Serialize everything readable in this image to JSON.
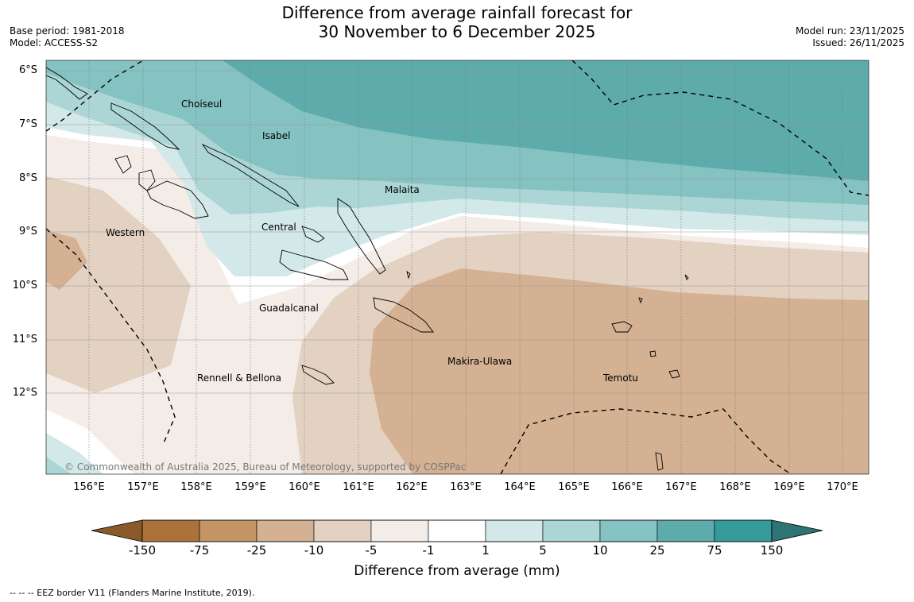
{
  "header": {
    "title_line1": "Difference from average rainfall forecast for",
    "title_line2": "30 November to 6 December 2025",
    "base_period": "Base period: 1981-2018",
    "model": "Model: ACCESS-S2",
    "model_run": "Model run: 23/11/2025",
    "issued": "Issued: 26/11/2025"
  },
  "map": {
    "lat_labels": [
      "6°S",
      "7°S",
      "8°S",
      "9°S",
      "10°S",
      "11°S",
      "12°S"
    ],
    "lon_labels": [
      "156°E",
      "157°E",
      "158°E",
      "159°E",
      "160°E",
      "161°E",
      "162°E",
      "163°E",
      "164°E",
      "165°E",
      "166°E",
      "167°E",
      "168°E",
      "169°E",
      "170°E"
    ],
    "regions": [
      "Choiseul",
      "Isabel",
      "Malaita",
      "Western",
      "Central",
      "Guadalcanal",
      "Makira-Ulawa",
      "Rennell & Bellona",
      "Temotu"
    ],
    "copyright": "© Commonwealth of Australia 2025, Bureau of Meteorology, supported by COSPPac"
  },
  "colorbar": {
    "title": "Difference from average (mm)",
    "ticks": [
      "-150",
      "-75",
      "-25",
      "-10",
      "-5",
      "-1",
      "1",
      "5",
      "10",
      "25",
      "75",
      "150"
    ],
    "colors": [
      "#ab733b",
      "#c49465",
      "#d3b192",
      "#e3d1c1",
      "#f4ece7",
      "#ffffff",
      "#d3e8e8",
      "#acd5d5",
      "#85c2c2",
      "#5eabab",
      "#359a9a"
    ],
    "extend_low_color": "#8a5a2b",
    "extend_high_color": "#2e7474"
  },
  "legend": {
    "eez_text": "--  --  -- EEZ border V11 (Flanders Marine Institute, 2019)."
  }
}
